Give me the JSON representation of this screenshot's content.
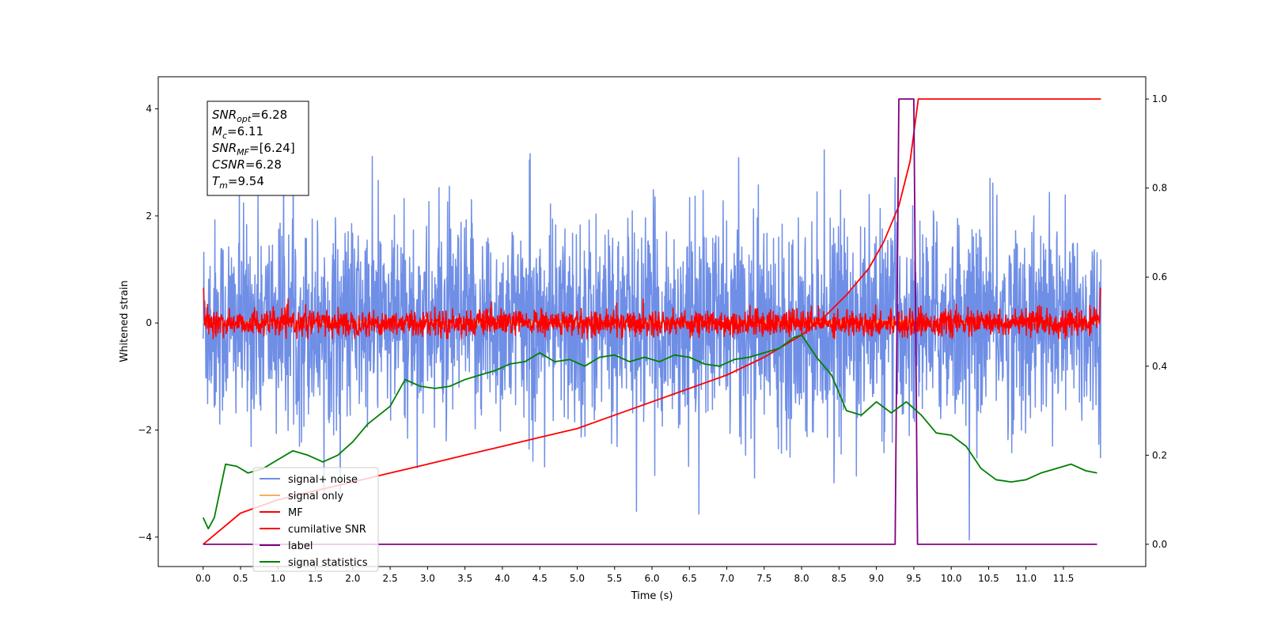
{
  "chart_data": {
    "type": "line",
    "xlabel": "Time (s)",
    "ylabel": "Whitened strain",
    "xlim": [
      -0.6,
      12.6
    ],
    "ylim": [
      -4.55,
      4.6
    ],
    "y2lim": [
      -0.05,
      1.05
    ],
    "xticks": [
      0.0,
      0.5,
      1.0,
      1.5,
      2.0,
      2.5,
      3.0,
      3.5,
      4.0,
      4.5,
      5.0,
      5.5,
      6.0,
      6.5,
      7.0,
      7.5,
      8.0,
      8.5,
      9.0,
      9.5,
      10.0,
      10.5,
      11.0,
      11.5
    ],
    "xtick_labels": [
      "0.0",
      "0.5",
      "1.0",
      "1.5",
      "2.0",
      "2.5",
      "3.0",
      "3.5",
      "4.0",
      "4.5",
      "5.0",
      "5.5",
      "6.0",
      "6.5",
      "7.0",
      "7.5",
      "8.0",
      "8.5",
      "9.0",
      "9.5",
      "10.0",
      "10.5",
      "11.0",
      "11.5"
    ],
    "yticks": [
      -4,
      -2,
      0,
      2,
      4
    ],
    "ytick_labels": [
      "−4",
      "−2",
      "0",
      "2",
      "4"
    ],
    "y2ticks": [
      0.0,
      0.2,
      0.4,
      0.6,
      0.8,
      1.0
    ],
    "y2tick_labels": [
      "0.0",
      "0.2",
      "0.4",
      "0.6",
      "0.8",
      "1.0"
    ],
    "annotation": [
      {
        "base": "SNR",
        "sub": "opt",
        "value": "=6.28"
      },
      {
        "base": "M",
        "sub": "c",
        "value": "=6.11"
      },
      {
        "base": "SNR",
        "sub": "MF",
        "value": "=[6.24]"
      },
      {
        "base": "CSNR",
        "sub": "",
        "value": "=6.28"
      },
      {
        "base": "T",
        "sub": "m",
        "value": "=9.54"
      }
    ],
    "legend_position": "lower-left",
    "colors": {
      "noise": "#6f8ee6",
      "signal": "#f7b05c",
      "mf": "#ff0000",
      "csnr": "#ff0000",
      "label": "#800080",
      "stats": "#008000"
    },
    "series": [
      {
        "name": "signal+ noise",
        "axis": "left",
        "x_range": [
          0.0,
          12.0
        ],
        "approx_std": 0.95
      },
      {
        "name": "signal only",
        "axis": "left",
        "x_range": [
          0.0,
          12.0
        ],
        "peak_time": 9.54
      },
      {
        "name": "MF",
        "axis": "left",
        "x_range": [
          0.0,
          12.0
        ],
        "approx_std": 0.12
      },
      {
        "name": "cumilative SNR",
        "axis": "right",
        "x": [
          0.0,
          0.5,
          1.0,
          1.5,
          2.0,
          2.5,
          3.0,
          3.5,
          4.0,
          4.5,
          5.0,
          5.5,
          6.0,
          6.5,
          7.0,
          7.5,
          8.0,
          8.3,
          8.6,
          8.9,
          9.1,
          9.3,
          9.45,
          9.56,
          10.0,
          10.5,
          11.0,
          11.5,
          12.0
        ],
        "y": [
          0.0,
          0.07,
          0.1,
          0.12,
          0.14,
          0.16,
          0.18,
          0.2,
          0.22,
          0.24,
          0.26,
          0.29,
          0.32,
          0.35,
          0.38,
          0.42,
          0.47,
          0.51,
          0.56,
          0.62,
          0.68,
          0.76,
          0.86,
          1.0,
          1.0,
          1.0,
          1.0,
          1.0,
          1.0
        ]
      },
      {
        "name": "label",
        "axis": "right",
        "x": [
          0.0,
          9.25,
          9.3,
          9.5,
          9.55,
          11.95
        ],
        "y": [
          0.0,
          0.0,
          1.0,
          1.0,
          0.0,
          0.0
        ]
      },
      {
        "name": "signal statistics",
        "axis": "right",
        "x": [
          0.0,
          0.07,
          0.15,
          0.3,
          0.45,
          0.6,
          0.8,
          1.0,
          1.2,
          1.4,
          1.6,
          1.8,
          2.0,
          2.2,
          2.5,
          2.7,
          2.9,
          3.1,
          3.3,
          3.5,
          3.7,
          3.9,
          4.1,
          4.3,
          4.5,
          4.7,
          4.9,
          5.1,
          5.3,
          5.5,
          5.7,
          5.9,
          6.1,
          6.3,
          6.5,
          6.7,
          6.9,
          7.1,
          7.3,
          7.5,
          7.7,
          7.9,
          8.0,
          8.2,
          8.4,
          8.6,
          8.8,
          9.0,
          9.2,
          9.4,
          9.6,
          9.8,
          10.0,
          10.2,
          10.4,
          10.6,
          10.8,
          11.0,
          11.2,
          11.4,
          11.6,
          11.8,
          11.95
        ],
        "y": [
          0.06,
          0.035,
          0.06,
          0.18,
          0.175,
          0.16,
          0.17,
          0.19,
          0.21,
          0.2,
          0.185,
          0.2,
          0.23,
          0.27,
          0.31,
          0.37,
          0.355,
          0.35,
          0.355,
          0.37,
          0.38,
          0.39,
          0.405,
          0.41,
          0.43,
          0.41,
          0.415,
          0.4,
          0.42,
          0.425,
          0.41,
          0.42,
          0.41,
          0.425,
          0.42,
          0.405,
          0.4,
          0.415,
          0.42,
          0.43,
          0.44,
          0.465,
          0.47,
          0.42,
          0.38,
          0.3,
          0.29,
          0.32,
          0.295,
          0.32,
          0.29,
          0.25,
          0.245,
          0.22,
          0.17,
          0.145,
          0.14,
          0.145,
          0.16,
          0.17,
          0.18,
          0.165,
          0.16
        ]
      }
    ]
  }
}
